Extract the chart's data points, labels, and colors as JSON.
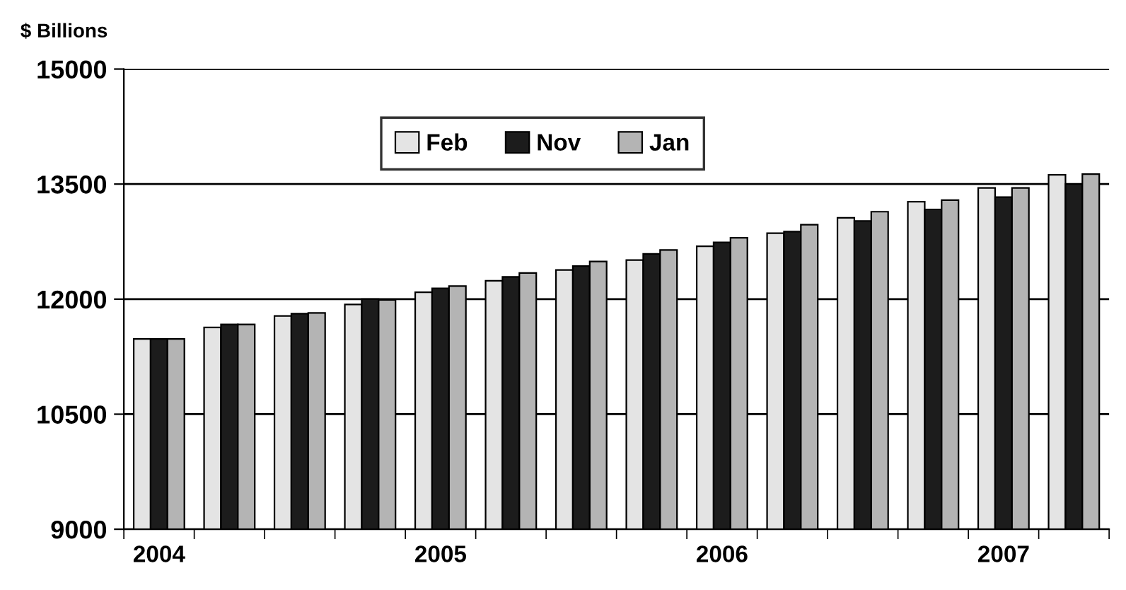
{
  "chart_data": {
    "type": "bar",
    "ylabel": "$ Billions",
    "categories": [
      "2004",
      null,
      null,
      null,
      "2005",
      null,
      null,
      null,
      "2006",
      null,
      null,
      null,
      "2007",
      null
    ],
    "series": [
      {
        "name": "Feb",
        "color": "#e4e4e4",
        "values": [
          11480,
          11630,
          11780,
          11930,
          12090,
          12240,
          12380,
          12510,
          12690,
          12860,
          13060,
          13270,
          13450,
          13620
        ]
      },
      {
        "name": "Nov",
        "color": "#1c1c1c",
        "values": [
          11480,
          11670,
          11810,
          12000,
          12140,
          12290,
          12430,
          12590,
          12740,
          12880,
          13020,
          13170,
          13330,
          13500
        ]
      },
      {
        "name": "Jan",
        "color": "#b4b4b4",
        "values": [
          11480,
          11670,
          11820,
          11990,
          12170,
          12340,
          12490,
          12640,
          12800,
          12970,
          13140,
          13290,
          13450,
          13630
        ]
      }
    ],
    "ylim": [
      9000,
      15000
    ],
    "yticks": [
      9000,
      10500,
      12000,
      13500,
      15000
    ],
    "grid": "y",
    "legend": "top"
  }
}
